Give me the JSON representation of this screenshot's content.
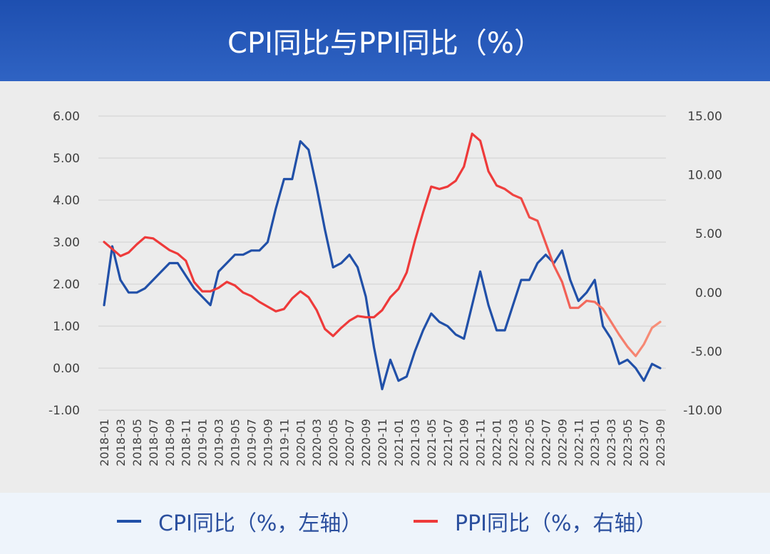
{
  "title": "CPI同比与PPI同比（%）",
  "legend": {
    "cpi_label": "CPI同比（%，左轴）",
    "ppi_label": "PPI同比（%，右轴）"
  },
  "colors": {
    "cpi": "#2150a8",
    "ppi_start": "#ee3a3a",
    "ppi_end": "#f7917a",
    "grid": "#d9d9d9",
    "axis_text": "#404040"
  },
  "chart_data": {
    "type": "line",
    "x": [
      "2018-01",
      "2018-02",
      "2018-03",
      "2018-04",
      "2018-05",
      "2018-06",
      "2018-07",
      "2018-08",
      "2018-09",
      "2018-10",
      "2018-11",
      "2018-12",
      "2019-01",
      "2019-02",
      "2019-03",
      "2019-04",
      "2019-05",
      "2019-06",
      "2019-07",
      "2019-08",
      "2019-09",
      "2019-10",
      "2019-11",
      "2019-12",
      "2020-01",
      "2020-02",
      "2020-03",
      "2020-04",
      "2020-05",
      "2020-06",
      "2020-07",
      "2020-08",
      "2020-09",
      "2020-10",
      "2020-11",
      "2020-12",
      "2021-01",
      "2021-02",
      "2021-03",
      "2021-04",
      "2021-05",
      "2021-06",
      "2021-07",
      "2021-08",
      "2021-09",
      "2021-10",
      "2021-11",
      "2021-12",
      "2022-01",
      "2022-02",
      "2022-03",
      "2022-04",
      "2022-05",
      "2022-06",
      "2022-07",
      "2022-08",
      "2022-09",
      "2022-10",
      "2022-11",
      "2022-12",
      "2023-01",
      "2023-02",
      "2023-03",
      "2023-04",
      "2023-05",
      "2023-06",
      "2023-07",
      "2023-08",
      "2023-09"
    ],
    "x_tick_labels": [
      "2018-01",
      "2018-03",
      "2018-05",
      "2018-07",
      "2018-09",
      "2018-11",
      "2019-01",
      "2019-03",
      "2019-05",
      "2019-07",
      "2019-09",
      "2019-11",
      "2020-01",
      "2020-03",
      "2020-05",
      "2020-07",
      "2020-09",
      "2020-11",
      "2021-01",
      "2021-03",
      "2021-05",
      "2021-07",
      "2021-09",
      "2021-11",
      "2022-01",
      "2022-03",
      "2022-05",
      "2022-07",
      "2022-09",
      "2022-11",
      "2023-01",
      "2023-03",
      "2023-05",
      "2023-07",
      "2023-09"
    ],
    "y_left": {
      "min": -1,
      "max": 6,
      "ticks": [
        "-1.00",
        "0.00",
        "1.00",
        "2.00",
        "3.00",
        "4.00",
        "5.00",
        "6.00"
      ],
      "tick_values": [
        -1,
        0,
        1,
        2,
        3,
        4,
        5,
        6
      ]
    },
    "y_right": {
      "min": -10,
      "max": 15,
      "ticks": [
        "-10.00",
        "-5.00",
        "0.00",
        "5.00",
        "10.00",
        "15.00"
      ],
      "tick_values": [
        -10,
        -5,
        0,
        5,
        10,
        15
      ]
    },
    "grid": true,
    "legend_position": "bottom",
    "series": [
      {
        "name": "CPI同比（%，左轴）",
        "axis": "left",
        "values": [
          1.5,
          2.9,
          2.1,
          1.8,
          1.8,
          1.9,
          2.1,
          2.3,
          2.5,
          2.5,
          2.2,
          1.9,
          1.7,
          1.5,
          2.3,
          2.5,
          2.7,
          2.7,
          2.8,
          2.8,
          3.0,
          3.8,
          4.5,
          4.5,
          5.4,
          5.2,
          4.3,
          3.3,
          2.4,
          2.5,
          2.7,
          2.4,
          1.7,
          0.5,
          -0.5,
          0.2,
          -0.3,
          -0.2,
          0.4,
          0.9,
          1.3,
          1.1,
          1.0,
          0.8,
          0.7,
          1.5,
          2.3,
          1.5,
          0.9,
          0.9,
          1.5,
          2.1,
          2.1,
          2.5,
          2.7,
          2.5,
          2.8,
          2.1,
          1.6,
          1.8,
          2.1,
          1.0,
          0.7,
          0.1,
          0.2,
          0.0,
          -0.3,
          0.1,
          0.0
        ]
      },
      {
        "name": "PPI同比（%，右轴）",
        "axis": "right",
        "values": [
          4.3,
          3.7,
          3.1,
          3.4,
          4.1,
          4.7,
          4.6,
          4.1,
          3.6,
          3.3,
          2.7,
          0.9,
          0.1,
          0.1,
          0.4,
          0.9,
          0.6,
          0.0,
          -0.3,
          -0.8,
          -1.2,
          -1.6,
          -1.4,
          -0.5,
          0.1,
          -0.4,
          -1.5,
          -3.1,
          -3.7,
          -3.0,
          -2.4,
          -2.0,
          -2.1,
          -2.1,
          -1.5,
          -0.4,
          0.3,
          1.7,
          4.4,
          6.8,
          9.0,
          8.8,
          9.0,
          9.5,
          10.7,
          13.5,
          12.9,
          10.3,
          9.1,
          8.8,
          8.3,
          8.0,
          6.4,
          6.1,
          4.2,
          2.3,
          0.9,
          -1.3,
          -1.3,
          -0.7,
          -0.8,
          -1.4,
          -2.5,
          -3.6,
          -4.6,
          -5.4,
          -4.4,
          -3.0,
          -2.5
        ]
      }
    ]
  }
}
